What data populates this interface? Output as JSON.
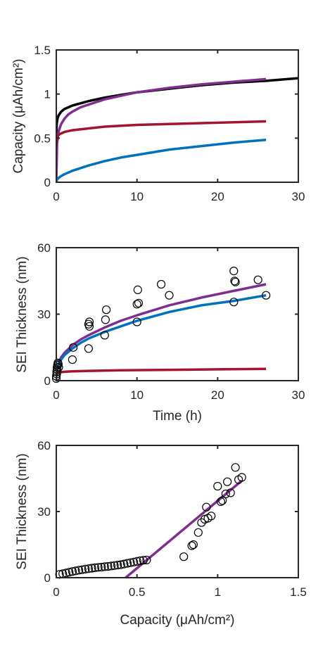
{
  "colors": {
    "black": "#000000",
    "purple": "#7E2F8E",
    "red": "#A2142F",
    "blue": "#0072BD",
    "axis": "#262626"
  },
  "chart_data": [
    {
      "type": "line",
      "xlabel": "",
      "ylabel": "Capacity (μAh/cm²)",
      "xlim": [
        0,
        30
      ],
      "ylim": [
        0,
        1.5
      ],
      "xticks": [
        0,
        10,
        20,
        30
      ],
      "yticks": [
        0,
        0.5,
        1,
        1.5
      ],
      "xtick_labels": [
        "0",
        "10",
        "20",
        "30"
      ],
      "ytick_labels": [
        "0",
        "0.5",
        "1",
        "1.5"
      ],
      "grid": false,
      "series": [
        {
          "color": "black",
          "x": [
            0,
            0.05,
            0.15,
            0.3,
            0.6,
            1,
            2,
            4,
            6,
            8,
            10,
            14,
            18,
            22,
            26,
            30
          ],
          "y": [
            0.5,
            0.66,
            0.72,
            0.76,
            0.8,
            0.83,
            0.87,
            0.92,
            0.96,
            0.99,
            1.02,
            1.06,
            1.1,
            1.13,
            1.15,
            1.18
          ]
        },
        {
          "color": "purple",
          "x": [
            0,
            0.1,
            0.3,
            0.6,
            1,
            1.5,
            2,
            3,
            4,
            6,
            8,
            10,
            14,
            18,
            22,
            26
          ],
          "y": [
            0,
            0.44,
            0.58,
            0.66,
            0.72,
            0.77,
            0.8,
            0.85,
            0.88,
            0.94,
            0.98,
            1.02,
            1.07,
            1.11,
            1.14,
            1.17
          ]
        },
        {
          "color": "red",
          "x": [
            0,
            0.05,
            0.2,
            0.5,
            1,
            2,
            4,
            6,
            10,
            14,
            18,
            22,
            26
          ],
          "y": [
            0.42,
            0.5,
            0.53,
            0.55,
            0.57,
            0.59,
            0.61,
            0.63,
            0.65,
            0.66,
            0.67,
            0.68,
            0.69
          ]
        },
        {
          "color": "blue",
          "x": [
            0,
            0.1,
            0.3,
            0.6,
            1,
            2,
            4,
            6,
            8,
            10,
            14,
            18,
            22,
            26
          ],
          "y": [
            0,
            0.03,
            0.05,
            0.07,
            0.09,
            0.13,
            0.19,
            0.24,
            0.28,
            0.31,
            0.37,
            0.41,
            0.45,
            0.48
          ]
        }
      ]
    },
    {
      "type": "line",
      "xlabel": "Time (h)",
      "ylabel": "SEI Thickness (nm)",
      "xlim": [
        0,
        30
      ],
      "ylim": [
        0,
        60
      ],
      "xticks": [
        0,
        10,
        20,
        30
      ],
      "yticks": [
        0,
        30,
        60
      ],
      "xtick_labels": [
        "0",
        "10",
        "20",
        "30"
      ],
      "ytick_labels": [
        "0",
        "30",
        "60"
      ],
      "grid": false,
      "series": [
        {
          "color": "purple",
          "x": [
            0,
            0.1,
            0.3,
            0.6,
            1,
            2,
            3,
            4,
            6,
            8,
            10,
            14,
            18,
            22,
            26
          ],
          "y": [
            1.5,
            5,
            8,
            10.5,
            12.5,
            16,
            18.5,
            20.5,
            24,
            27,
            29.5,
            34,
            37.5,
            40.5,
            43.5
          ]
        },
        {
          "color": "blue",
          "x": [
            0,
            0.1,
            0.3,
            0.6,
            1,
            2,
            3,
            4,
            6,
            8,
            10,
            14,
            18,
            22,
            26
          ],
          "y": [
            1.5,
            4.5,
            7.5,
            9.5,
            11.5,
            14.5,
            17,
            19,
            22,
            24.5,
            27,
            31,
            34,
            36,
            38.5
          ]
        },
        {
          "color": "red",
          "x": [
            0,
            0.1,
            0.5,
            1,
            2,
            4,
            8,
            14,
            20,
            26
          ],
          "y": [
            3,
            3.5,
            3.8,
            4,
            4.2,
            4.4,
            4.7,
            4.9,
            5.1,
            5.3
          ]
        }
      ],
      "markers": {
        "x": [
          0,
          0,
          0.05,
          0.05,
          0.1,
          0.1,
          0.15,
          0.2,
          0.25,
          0.3,
          2,
          2.1,
          4,
          4,
          4.1,
          4.1,
          6,
          6.1,
          6.2,
          10,
          10,
          10.1,
          10.2,
          13,
          14,
          22,
          22,
          22.2,
          22.1,
          25,
          26
        ],
        "y": [
          1,
          2,
          3,
          4,
          5,
          6,
          7,
          8,
          7.5,
          6,
          9.5,
          15,
          14.5,
          25.5,
          26.5,
          24.5,
          20.5,
          27.5,
          32,
          26.5,
          34.5,
          41,
          35,
          43.5,
          38.5,
          35.5,
          49.5,
          44.5,
          45,
          45.5,
          38.5
        ]
      }
    },
    {
      "type": "scatter",
      "xlabel": "Capacity (μAh/cm²)",
      "ylabel": "SEI Thickness (nm)",
      "xlim": [
        0,
        1.5
      ],
      "ylim": [
        0,
        60
      ],
      "xticks": [
        0,
        0.5,
        1,
        1.5
      ],
      "yticks": [
        0,
        30,
        60
      ],
      "xtick_labels": [
        "0",
        "0.5",
        "1",
        "1.5"
      ],
      "ytick_labels": [
        "0",
        "30",
        "60"
      ],
      "grid": false,
      "markers": {
        "x": [
          0.02,
          0.04,
          0.06,
          0.08,
          0.1,
          0.12,
          0.14,
          0.16,
          0.18,
          0.2,
          0.22,
          0.24,
          0.26,
          0.28,
          0.3,
          0.32,
          0.34,
          0.36,
          0.38,
          0.4,
          0.42,
          0.44,
          0.46,
          0.48,
          0.5,
          0.52,
          0.54,
          0.56,
          0.79,
          0.84,
          0.85,
          0.88,
          0.9,
          0.92,
          0.94,
          0.93,
          0.96,
          1.0,
          1.03,
          1.05,
          1.08,
          1.11,
          1.13,
          1.15,
          1.02,
          1.06
        ],
        "y": [
          1.5,
          1.8,
          2.1,
          2.5,
          2.8,
          3.1,
          3.4,
          3.6,
          3.9,
          4.1,
          4.3,
          4.5,
          4.7,
          4.8,
          5.0,
          5.1,
          5.3,
          5.5,
          5.7,
          5.9,
          6.2,
          6.5,
          6.8,
          7.1,
          7.4,
          7.7,
          7.9,
          8.0,
          9.5,
          14.5,
          15.0,
          20.5,
          25.0,
          26.5,
          27.0,
          32.0,
          28.0,
          41.5,
          35.0,
          38.0,
          38.5,
          50.0,
          44.5,
          45.5,
          34.5,
          43.5
        ]
      },
      "series": [
        {
          "color": "purple",
          "x": [
            0.43,
            1.15
          ],
          "y": [
            0,
            44
          ]
        }
      ]
    }
  ]
}
